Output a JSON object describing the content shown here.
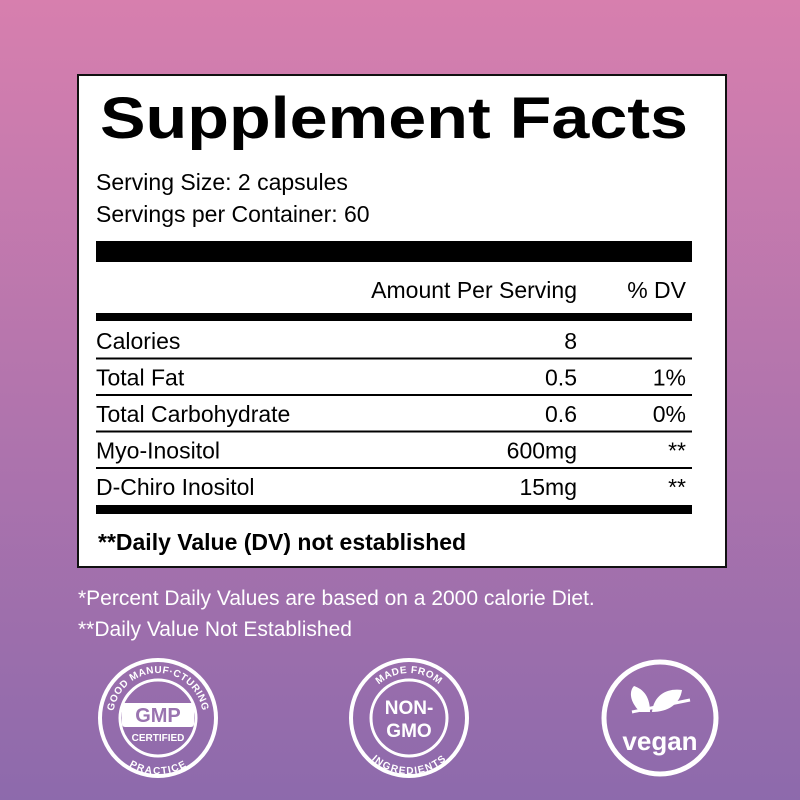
{
  "panel": {
    "title": "Supplement Facts",
    "serving_size": "Serving Size: 2 capsules",
    "servings_per_container": "Servings per Container: 60",
    "header": {
      "amount": "Amount Per Serving",
      "dv": "% DV"
    },
    "rows": [
      [
        "Calories",
        "8",
        ""
      ],
      [
        "Total Fat",
        "0.5",
        "1%"
      ],
      [
        "Total Carbohydrate",
        "0.6",
        "0%"
      ],
      [
        "Myo-Inositol",
        "600mg",
        "**"
      ],
      [
        "D-Chiro Inositol",
        "15mg",
        "**"
      ]
    ],
    "footnote": "**Daily Value (DV) not established"
  },
  "notes": [
    "*Percent Daily Values are based on a 2000 calorie Diet.",
    "**Daily Value Not Established"
  ],
  "badges": [
    {
      "top": "GOOD MANUF·CTURING",
      "center": "GMP",
      "sub": "CERTIFIED",
      "bottom": "PRACTICE"
    },
    {
      "top": "MADE FROM",
      "center": "NON-",
      "sub": "GMO",
      "bottom": "INGREDIENTS"
    },
    {
      "center": "vegan"
    }
  ]
}
